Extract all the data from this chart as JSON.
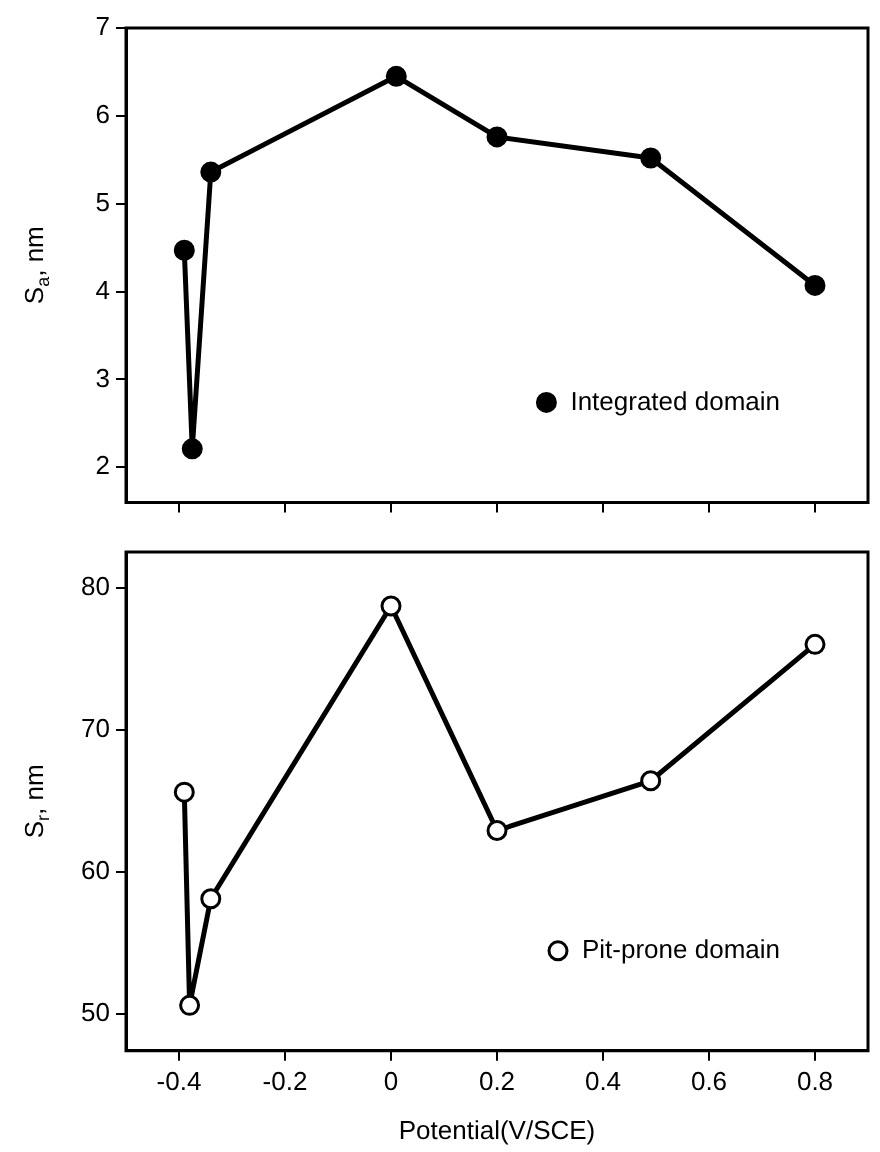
{
  "chart_data": [
    {
      "type": "line",
      "ylabel": "S$_{a}$, nm",
      "x": [
        -0.39,
        -0.375,
        -0.34,
        0.01,
        0.2,
        0.49,
        0.8
      ],
      "series": [
        {
          "name": "Integrated domain",
          "color": "#000000",
          "values": [
            4.47,
            2.21,
            5.36,
            6.45,
            5.76,
            5.52,
            4.07
          ]
        }
      ],
      "xlim": [
        -0.5,
        0.9
      ],
      "xticks": [
        -0.4,
        -0.2,
        0.0,
        0.2,
        0.4,
        0.6,
        0.8
      ],
      "ylim": [
        1.6,
        7
      ],
      "yticks": [
        2,
        3,
        4,
        5,
        6,
        7
      ],
      "tick_labels": "y",
      "marker": "circle",
      "legend": "bottom right",
      "line_style": "solid"
    },
    {
      "type": "line",
      "xlabel": "Potential(V/SCE)",
      "ylabel": "S$_{r}$, nm",
      "x": [
        -0.39,
        -0.38,
        -0.34,
        0.0,
        0.2,
        0.49,
        0.8
      ],
      "series": [
        {
          "name": "Pit-prone domain",
          "color": "#000000",
          "values": [
            65.6,
            50.6,
            58.1,
            78.7,
            62.9,
            66.4,
            76.0
          ]
        }
      ],
      "xlim": [
        -0.5,
        0.9
      ],
      "xticks": [
        -0.4,
        -0.2,
        0.0,
        0.2,
        0.4,
        0.6,
        0.8
      ],
      "ylim": [
        47.4,
        82.5
      ],
      "yticks": [
        50,
        60,
        70,
        80
      ],
      "marker": "circle",
      "legend": "bottom right",
      "line_style": "solid"
    }
  ]
}
